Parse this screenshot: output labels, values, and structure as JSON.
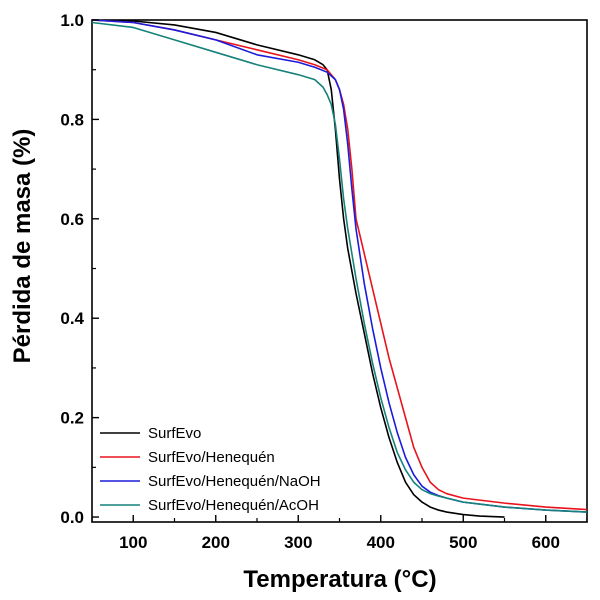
{
  "chart_data": {
    "type": "line",
    "title": "",
    "xlabel": "Temperatura (°C)",
    "ylabel": "Pérdida de masa (%)",
    "xlim": [
      50,
      650
    ],
    "ylim": [
      -0.01,
      1.0
    ],
    "xticks": [
      100,
      200,
      300,
      400,
      500,
      600
    ],
    "xtick_labels": [
      "100",
      "200",
      "300",
      "400",
      "500",
      "600"
    ],
    "yticks": [
      0.0,
      0.2,
      0.4,
      0.6,
      0.8,
      1.0
    ],
    "ytick_labels": [
      "0.0",
      "0.2",
      "0.4",
      "0.6",
      "0.8",
      "1.0"
    ],
    "grid": false,
    "legend_position": "bottom-left",
    "series": [
      {
        "name": "SurfEvo",
        "color": "#000000",
        "x": [
          50,
          100,
          150,
          200,
          250,
          300,
          320,
          330,
          335,
          340,
          345,
          350,
          355,
          360,
          370,
          380,
          390,
          400,
          410,
          420,
          430,
          440,
          450,
          460,
          470,
          480,
          500,
          520,
          550
        ],
        "y": [
          1.0,
          0.998,
          0.99,
          0.975,
          0.95,
          0.93,
          0.92,
          0.91,
          0.9,
          0.86,
          0.78,
          0.68,
          0.6,
          0.54,
          0.45,
          0.37,
          0.29,
          0.22,
          0.16,
          0.11,
          0.07,
          0.045,
          0.03,
          0.02,
          0.014,
          0.01,
          0.005,
          0.002,
          0.0
        ]
      },
      {
        "name": "SurfEvo/Henequén",
        "color": "#e8141c",
        "x": [
          50,
          100,
          150,
          200,
          250,
          300,
          320,
          335,
          345,
          350,
          355,
          360,
          365,
          370,
          380,
          390,
          400,
          410,
          420,
          430,
          440,
          450,
          460,
          470,
          480,
          500,
          550,
          600,
          650
        ],
        "y": [
          1.0,
          0.995,
          0.98,
          0.96,
          0.94,
          0.92,
          0.91,
          0.9,
          0.88,
          0.86,
          0.83,
          0.78,
          0.7,
          0.6,
          0.53,
          0.46,
          0.39,
          0.32,
          0.26,
          0.2,
          0.14,
          0.1,
          0.07,
          0.055,
          0.047,
          0.038,
          0.028,
          0.02,
          0.015
        ]
      },
      {
        "name": "SurfEvo/Henequén/NaOH",
        "color": "#1c1cdc",
        "x": [
          50,
          100,
          150,
          200,
          250,
          300,
          320,
          335,
          345,
          350,
          355,
          360,
          365,
          370,
          380,
          390,
          400,
          410,
          420,
          430,
          440,
          450,
          460,
          470,
          480,
          500,
          550,
          600,
          650
        ],
        "y": [
          1.0,
          0.995,
          0.98,
          0.96,
          0.93,
          0.915,
          0.905,
          0.895,
          0.88,
          0.86,
          0.82,
          0.75,
          0.66,
          0.58,
          0.47,
          0.38,
          0.3,
          0.23,
          0.17,
          0.12,
          0.085,
          0.062,
          0.05,
          0.043,
          0.038,
          0.03,
          0.02,
          0.014,
          0.01
        ]
      },
      {
        "name": "SurfEvo/Henequén/AcOH",
        "color": "#16827a",
        "x": [
          50,
          100,
          150,
          200,
          250,
          300,
          320,
          330,
          335,
          340,
          345,
          350,
          355,
          360,
          370,
          380,
          390,
          400,
          410,
          420,
          430,
          440,
          450,
          460,
          470,
          480,
          500,
          550,
          600,
          650
        ],
        "y": [
          0.995,
          0.985,
          0.96,
          0.935,
          0.91,
          0.89,
          0.88,
          0.865,
          0.85,
          0.83,
          0.79,
          0.72,
          0.64,
          0.58,
          0.48,
          0.39,
          0.31,
          0.24,
          0.18,
          0.13,
          0.095,
          0.07,
          0.055,
          0.047,
          0.042,
          0.038,
          0.03,
          0.02,
          0.014,
          0.01
        ]
      }
    ]
  }
}
